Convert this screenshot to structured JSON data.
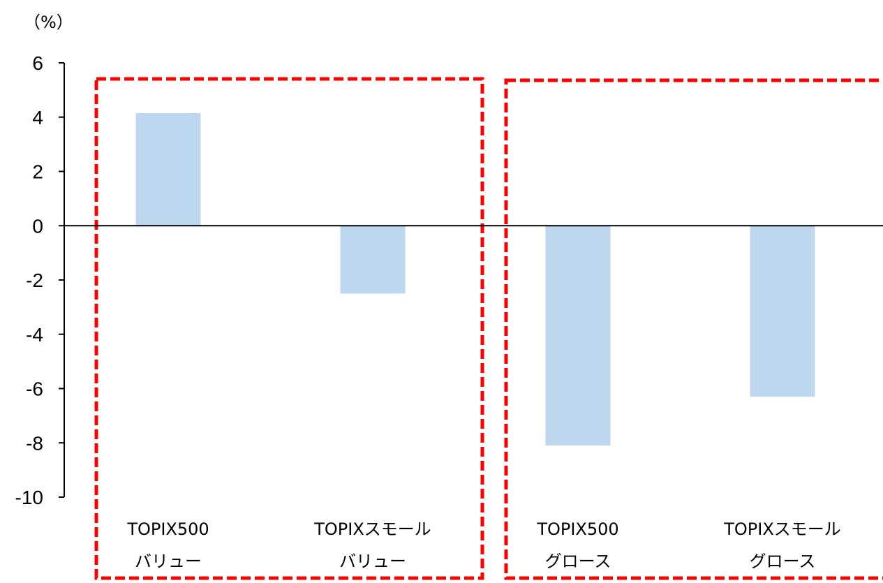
{
  "chart_data": {
    "type": "bar",
    "unit_label": "（%）",
    "title": "",
    "xlabel": "",
    "ylabel": "",
    "ylim": [
      -10,
      6
    ],
    "yticks": [
      6,
      4,
      2,
      0,
      -2,
      -4,
      -6,
      -8,
      -10
    ],
    "ytick_labels": [
      "6",
      "4",
      "2",
      "0",
      "-2",
      "-4",
      "-6",
      "-8",
      "-10"
    ],
    "categories": [
      [
        "TOPIX500",
        "バリュー"
      ],
      [
        "TOPIXスモール",
        "バリュー"
      ],
      [
        "TOPIX500",
        "グロース"
      ],
      [
        "TOPIXスモール",
        "グロース"
      ]
    ],
    "values": [
      4.15,
      -2.5,
      -8.1,
      -6.3
    ],
    "bar_color": "#bdd7ee",
    "grid": false,
    "legend": "none",
    "highlight_groups": [
      {
        "categories": [
          0,
          1
        ],
        "style": "red-dashed-box",
        "color": "#ff0000"
      },
      {
        "categories": [
          2,
          3
        ],
        "style": "red-dashed-box",
        "color": "#ff0000"
      }
    ]
  }
}
